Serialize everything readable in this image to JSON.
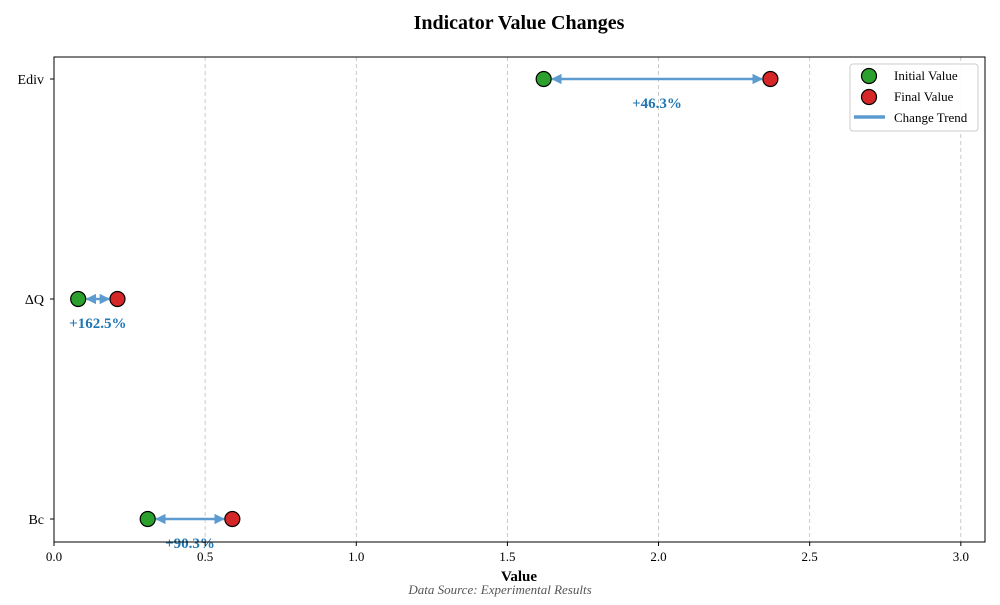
{
  "chart_data": {
    "type": "scatter",
    "subtype": "dumbbell",
    "title": "Indicator Value Changes",
    "xlabel": "Value",
    "ylabel": "",
    "source_note": "Data Source: Experimental Results",
    "xlim": [
      0,
      3.08
    ],
    "xticks": [
      0.0,
      0.5,
      1.0,
      1.5,
      2.0,
      2.5,
      3.0
    ],
    "xtick_labels": [
      "0.0",
      "0.5",
      "1.0",
      "1.5",
      "2.0",
      "2.5",
      "3.0"
    ],
    "grid": {
      "x": true,
      "y": false,
      "style": "dashed"
    },
    "legend_position": "top-right",
    "categories": [
      "Bc",
      "ΔQ",
      "Ediv"
    ],
    "series": [
      {
        "name": "Initial Value",
        "color": "#2ca02c",
        "values": [
          0.31,
          0.08,
          1.62
        ]
      },
      {
        "name": "Final Value",
        "color": "#d62728",
        "values": [
          0.59,
          0.21,
          2.37
        ]
      }
    ],
    "trend": {
      "name": "Change Trend",
      "color": "#5b9bd0"
    },
    "change_labels": [
      "+90.3%",
      "+162.5%",
      "+46.3%"
    ],
    "label_color": "#1f77b4"
  }
}
